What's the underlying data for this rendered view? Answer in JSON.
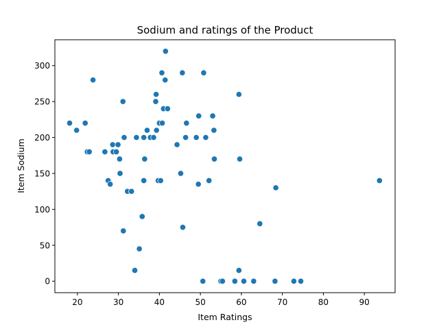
{
  "chart_data": {
    "type": "scatter",
    "title": "Sodium and ratings of the Product",
    "xlabel": "Item Ratings",
    "ylabel": "Item Sodium",
    "xlim": [
      14.5,
      97.5
    ],
    "ylim": [
      -16,
      336
    ],
    "xticks": [
      20,
      30,
      40,
      50,
      60,
      70,
      80,
      90
    ],
    "yticks": [
      0,
      50,
      100,
      150,
      200,
      250,
      300
    ],
    "grid": false,
    "marker_color": "#1f77b4",
    "marker_edge_color": "#ffffff",
    "points": [
      [
        18.1,
        220
      ],
      [
        19.8,
        210
      ],
      [
        21.9,
        220
      ],
      [
        22.4,
        180
      ],
      [
        22.9,
        180
      ],
      [
        23.8,
        280
      ],
      [
        26.7,
        180
      ],
      [
        27.5,
        140
      ],
      [
        28.0,
        135
      ],
      [
        28.6,
        190
      ],
      [
        28.7,
        180
      ],
      [
        29.5,
        180
      ],
      [
        29.9,
        190
      ],
      [
        30.3,
        170
      ],
      [
        30.4,
        150
      ],
      [
        31.1,
        250
      ],
      [
        31.2,
        70
      ],
      [
        31.4,
        200
      ],
      [
        32.2,
        125
      ],
      [
        33.2,
        125
      ],
      [
        34.0,
        15
      ],
      [
        34.4,
        200
      ],
      [
        35.1,
        45
      ],
      [
        35.8,
        90
      ],
      [
        36.2,
        140
      ],
      [
        36.2,
        200
      ],
      [
        36.4,
        170
      ],
      [
        37.0,
        210
      ],
      [
        37.8,
        200
      ],
      [
        38.6,
        200
      ],
      [
        39.1,
        250
      ],
      [
        39.2,
        260
      ],
      [
        39.3,
        210
      ],
      [
        39.7,
        140
      ],
      [
        40.0,
        220
      ],
      [
        40.3,
        140
      ],
      [
        40.6,
        290
      ],
      [
        40.7,
        220
      ],
      [
        41.0,
        240
      ],
      [
        41.4,
        280
      ],
      [
        41.5,
        320
      ],
      [
        42.0,
        240
      ],
      [
        44.3,
        190
      ],
      [
        45.2,
        150
      ],
      [
        45.6,
        290
      ],
      [
        45.7,
        75
      ],
      [
        46.4,
        200
      ],
      [
        46.6,
        220
      ],
      [
        49.0,
        200
      ],
      [
        49.5,
        135
      ],
      [
        49.6,
        230
      ],
      [
        50.6,
        0
      ],
      [
        50.8,
        290
      ],
      [
        51.3,
        200
      ],
      [
        52.1,
        140
      ],
      [
        53.0,
        230
      ],
      [
        53.3,
        210
      ],
      [
        53.4,
        170
      ],
      [
        55.0,
        0
      ],
      [
        55.4,
        0
      ],
      [
        58.4,
        0
      ],
      [
        59.4,
        15
      ],
      [
        59.4,
        260
      ],
      [
        59.6,
        170
      ],
      [
        60.6,
        0
      ],
      [
        63.0,
        0
      ],
      [
        64.5,
        80
      ],
      [
        68.2,
        0
      ],
      [
        68.4,
        130
      ],
      [
        72.8,
        0
      ],
      [
        74.5,
        0
      ],
      [
        93.7,
        140
      ]
    ]
  }
}
